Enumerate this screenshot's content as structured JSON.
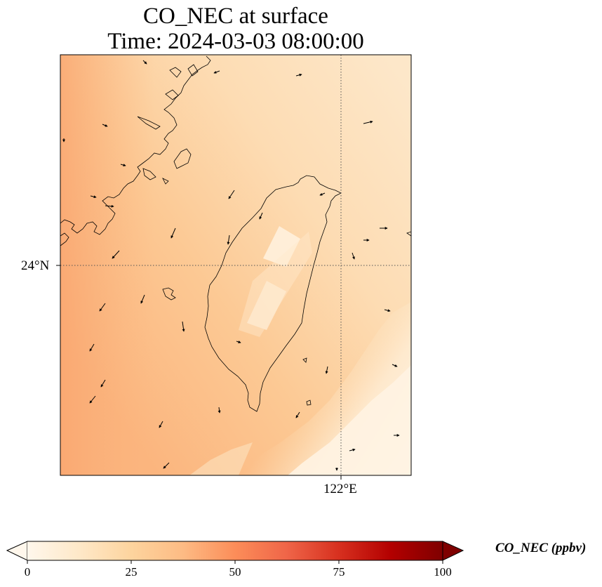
{
  "title": {
    "line1": "CO_NEC at surface",
    "line2": "Time: 2024-03-03 08:00:00"
  },
  "map": {
    "lat_label": "24°N",
    "lon_label": "122°E",
    "gridlines": "dotted",
    "coastline_color": "#000000",
    "wind_vectors": true
  },
  "colorbar": {
    "label": "CO_NEC (ppbv)",
    "colormap": "OrRd",
    "range": [
      0,
      100
    ],
    "extend": "both",
    "ticks": [
      "0",
      "25",
      "50",
      "75",
      "100"
    ],
    "colors": [
      "#fff7ec",
      "#fee8c8",
      "#fdd49e",
      "#fdbb84",
      "#fc8d59",
      "#ef6548",
      "#d7301f",
      "#b30000",
      "#7f0000"
    ]
  },
  "chart_data": {
    "type": "heatmap",
    "title": "CO_NEC at surface\nTime: 2024-03-03 08:00:00",
    "variable": "CO_NEC",
    "units": "ppbv",
    "value_range": [
      0,
      100
    ],
    "approx_value_range_shown": [
      2,
      33
    ]
  }
}
